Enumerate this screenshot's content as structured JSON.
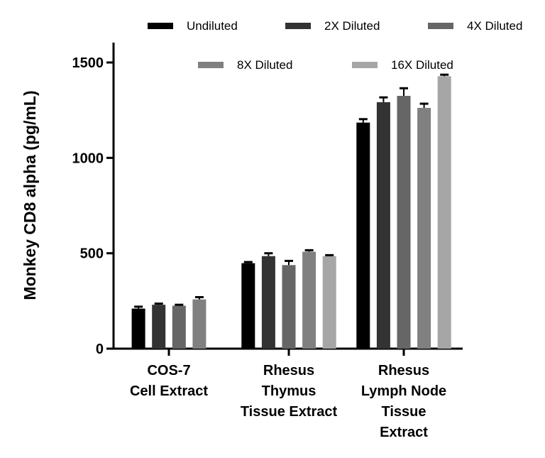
{
  "chart_data": {
    "type": "bar",
    "categories": [
      [
        "COS-7",
        "Cell Extract"
      ],
      [
        "Rhesus",
        "Thymus",
        "Tissue Extract"
      ],
      [
        "Rhesus",
        "Lymph Node",
        "Tissue",
        "Extract"
      ]
    ],
    "ylabel": "Monkey CD8 alpha (pg/mL)",
    "xlabel": "",
    "ylim": [
      0,
      1600
    ],
    "yticks": [
      0,
      500,
      1000,
      1500
    ],
    "grid": false,
    "legend_position": "top",
    "series": [
      {
        "name": "Undiluted",
        "color": "#000000",
        "values": [
          210,
          448,
          1185
        ],
        "errors": [
          10,
          6,
          18
        ]
      },
      {
        "name": "2X Diluted",
        "color": "#333333",
        "values": [
          230,
          485,
          1292
        ],
        "errors": [
          6,
          15,
          25
        ]
      },
      {
        "name": "4X Diluted",
        "color": "#666666",
        "values": [
          225,
          438,
          1325
        ],
        "errors": [
          5,
          22,
          40
        ]
      },
      {
        "name": "8X Diluted",
        "color": "#808080",
        "values": [
          258,
          508,
          1262
        ],
        "errors": [
          12,
          8,
          22
        ]
      },
      {
        "name": "16X Diluted",
        "color": "#a6a6a6",
        "values": [
          null,
          485,
          1428
        ],
        "errors": [
          null,
          5,
          8
        ]
      }
    ]
  }
}
